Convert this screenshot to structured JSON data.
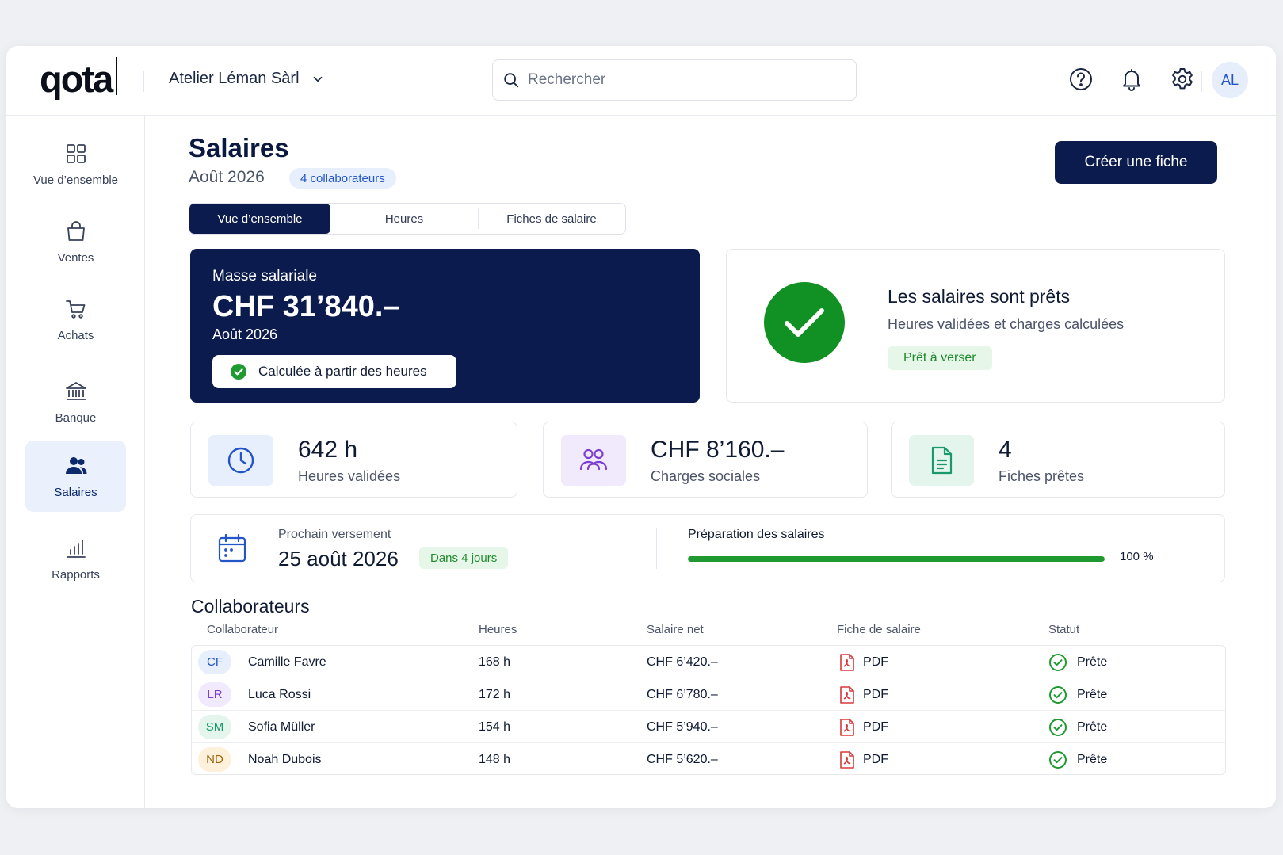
{
  "header": {
    "logo": "qota",
    "company": "Atelier Léman Sàrl",
    "search_placeholder": "Rechercher",
    "user_initials": "AL"
  },
  "sidebar": {
    "items": [
      {
        "label": "Vue d’ensemble",
        "icon": "grid-icon"
      },
      {
        "label": "Ventes",
        "icon": "shopping-bag-icon"
      },
      {
        "label": "Achats",
        "icon": "cart-icon"
      },
      {
        "label": "Banque",
        "icon": "bank-icon"
      },
      {
        "label": "Salaires",
        "icon": "users-icon",
        "active": true
      },
      {
        "label": "Rapports",
        "icon": "bar-chart-icon"
      }
    ]
  },
  "page": {
    "title": "Salaires",
    "period": "Août 2026",
    "employee_badge": "4 collaborateurs",
    "create_button": "Créer une fiche",
    "tabs": [
      "Vue d’ensemble",
      "Heures",
      "Fiches de salaire"
    ],
    "active_tab": 0
  },
  "payroll": {
    "label": "Masse salariale",
    "amount": "CHF 31’840.–",
    "period": "Août 2026",
    "pill": "Calculée à partir des heures"
  },
  "ready": {
    "title": "Les salaires sont prêts",
    "subtitle": "Heures validées et charges calculées",
    "badge": "Prêt à verser"
  },
  "stats": [
    {
      "value": "642 h",
      "label": "Heures validées",
      "icon": "clock-icon"
    },
    {
      "value": "CHF 8’160.–",
      "label": "Charges sociales",
      "icon": "people-icon"
    },
    {
      "value": "4",
      "label": "Fiches prêtes",
      "icon": "document-icon"
    }
  ],
  "payment": {
    "label": "Prochain versement",
    "date": "25 août 2026",
    "badge": "Dans 4 jours",
    "progress_label": "Préparation des salaires",
    "progress_value": 100,
    "progress_text": "100 %"
  },
  "table": {
    "title": "Collaborateurs",
    "columns": [
      "Collaborateur",
      "Heures",
      "Salaire net",
      "Fiche de salaire",
      "Statut"
    ],
    "rows": [
      {
        "initials": "CF",
        "name": "Camille Favre",
        "hours": "168 h",
        "salary": "CHF 6’420.–",
        "payslip": "PDF",
        "status": "Prête"
      },
      {
        "initials": "LR",
        "name": "Luca Rossi",
        "hours": "172 h",
        "salary": "CHF 6’780.–",
        "payslip": "PDF",
        "status": "Prête"
      },
      {
        "initials": "SM",
        "name": "Sofia Müller",
        "hours": "154 h",
        "salary": "CHF 5’940.–",
        "payslip": "PDF",
        "status": "Prête"
      },
      {
        "initials": "ND",
        "name": "Noah Dubois",
        "hours": "148 h",
        "salary": "CHF 5’620.–",
        "payslip": "PDF",
        "status": "Prête"
      }
    ]
  },
  "colors": {
    "navy": "#0b1b4d",
    "green": "#1e9a31",
    "accent_blue": "#2355c9"
  }
}
